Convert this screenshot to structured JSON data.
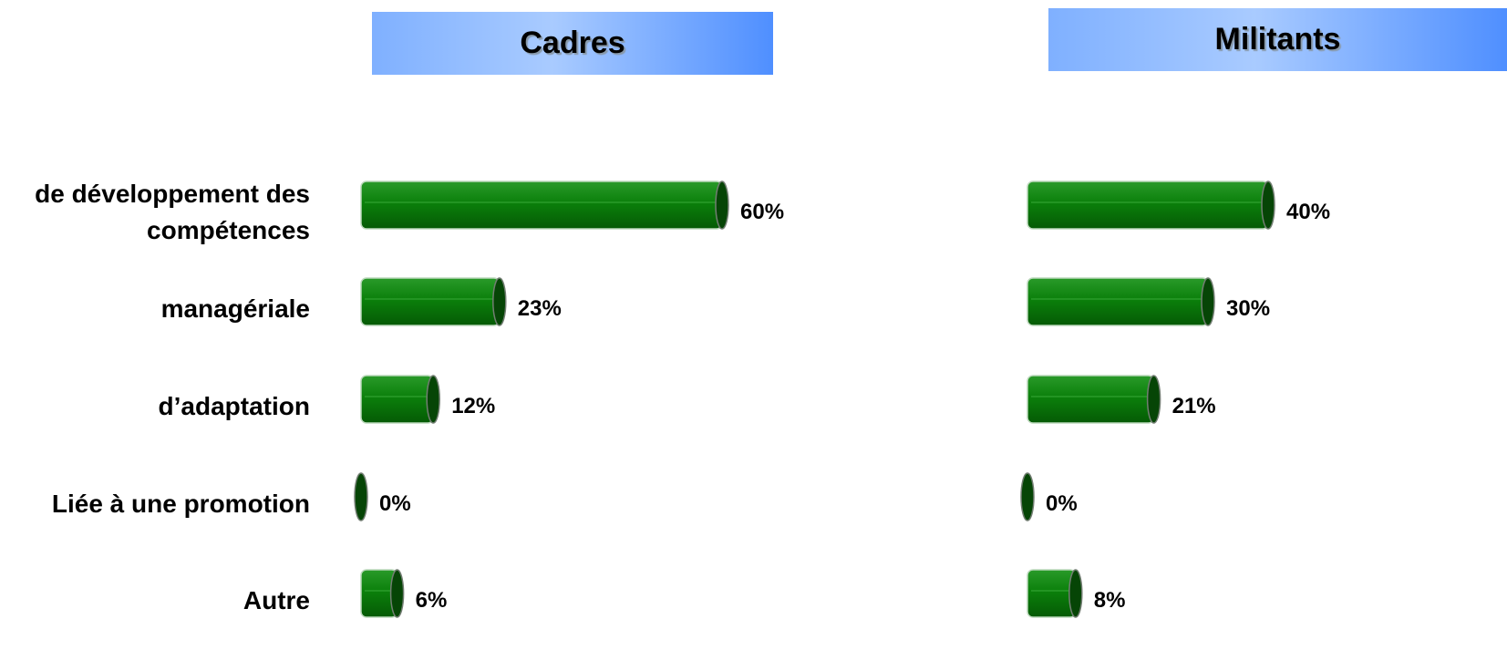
{
  "chart_data": [
    {
      "type": "bar",
      "title": "Cadres",
      "categories": [
        "de développement des compétences",
        "managériale",
        "d’adaptation",
        "Liée à une promotion",
        "Autre"
      ],
      "values": [
        60,
        23,
        12,
        0,
        6
      ],
      "value_labels": [
        "60%",
        "23%",
        "12%",
        "0%",
        "6%"
      ],
      "color": "#0a7d0a"
    },
    {
      "type": "bar",
      "title": "Militants",
      "values": [
        40,
        30,
        21,
        0,
        8
      ],
      "value_labels": [
        "40%",
        "30%",
        "21%",
        "0%",
        "8%"
      ],
      "color": "#0a7d0a"
    }
  ]
}
